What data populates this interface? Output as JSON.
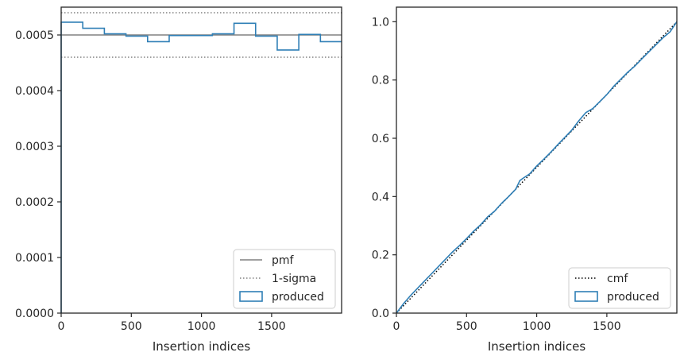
{
  "chart_data": [
    {
      "type": "step",
      "xlabel": "Insertion indices",
      "ylabel": "",
      "xlim": [
        0,
        1999
      ],
      "ylim": [
        0,
        0.00055
      ],
      "x_ticks": [
        0,
        500,
        1000,
        1500
      ],
      "x_tick_labels": [
        "0",
        "500",
        "1000",
        "1500"
      ],
      "y_ticks": [
        0,
        0.0001,
        0.0002,
        0.0003,
        0.0004,
        0.0005
      ],
      "y_tick_labels": [
        "0.0000",
        "0.0001",
        "0.0002",
        "0.0003",
        "0.0004",
        "0.0005"
      ],
      "reference_lines": [
        {
          "name": "pmf",
          "y": 0.0005,
          "color": "#808080",
          "style": "solid"
        },
        {
          "name": "1-sigma",
          "y": 0.00054,
          "color": "#808080",
          "style": "dotted"
        },
        {
          "name": "1-sigma",
          "y": 0.00046,
          "color": "#808080",
          "style": "dotted"
        }
      ],
      "series": [
        {
          "name": "produced",
          "color": "#2f7fb6",
          "bin_edges": [
            0,
            154,
            308,
            462,
            616,
            770,
            924,
            1078,
            1232,
            1386,
            1540,
            1694,
            1848,
            1999
          ],
          "values": [
            0.000523,
            0.000512,
            0.000502,
            0.000498,
            0.000488,
            0.000499,
            0.000499,
            0.000502,
            0.000521,
            0.000498,
            0.000473,
            0.000501,
            0.000488
          ]
        }
      ],
      "legend": {
        "position": "lower-right",
        "entries": [
          {
            "label": "pmf",
            "kind": "solid-line",
            "color": "#808080"
          },
          {
            "label": "1-sigma",
            "kind": "dotted-line",
            "color": "#808080"
          },
          {
            "label": "produced",
            "kind": "patch",
            "color": "#2f7fb6"
          }
        ]
      }
    },
    {
      "type": "step",
      "xlabel": "Insertion indices",
      "ylabel": "",
      "xlim": [
        0,
        1999
      ],
      "ylim": [
        0,
        1.05
      ],
      "x_ticks": [
        0,
        500,
        1000,
        1500
      ],
      "x_tick_labels": [
        "0",
        "500",
        "1000",
        "1500"
      ],
      "y_ticks": [
        0,
        0.2,
        0.4,
        0.6,
        0.8,
        1.0
      ],
      "y_tick_labels": [
        "0.0",
        "0.2",
        "0.4",
        "0.6",
        "0.8",
        "1.0"
      ],
      "reference_lines": [
        {
          "name": "cmf",
          "points": [
            [
              0,
              0
            ],
            [
              1999,
              1.0
            ]
          ],
          "color": "#000000",
          "style": "dotted"
        }
      ],
      "series": [
        {
          "name": "produced",
          "color": "#2f7fb6",
          "x": [
            0,
            50,
            100,
            150,
            200,
            250,
            300,
            350,
            400,
            450,
            500,
            550,
            600,
            650,
            700,
            750,
            800,
            850,
            880,
            900,
            950,
            1000,
            1050,
            1100,
            1150,
            1200,
            1250,
            1300,
            1350,
            1400,
            1450,
            1500,
            1550,
            1600,
            1650,
            1700,
            1750,
            1800,
            1850,
            1900,
            1950,
            1999
          ],
          "values": [
            0,
            0.032,
            0.06,
            0.085,
            0.11,
            0.135,
            0.16,
            0.185,
            0.21,
            0.232,
            0.256,
            0.281,
            0.303,
            0.33,
            0.35,
            0.377,
            0.4,
            0.425,
            0.455,
            0.462,
            0.478,
            0.505,
            0.528,
            0.552,
            0.578,
            0.603,
            0.628,
            0.66,
            0.688,
            0.702,
            0.726,
            0.75,
            0.779,
            0.803,
            0.827,
            0.848,
            0.873,
            0.897,
            0.921,
            0.945,
            0.965,
            1.0
          ]
        }
      ],
      "legend": {
        "position": "lower-right",
        "entries": [
          {
            "label": "cmf",
            "kind": "dotted-line",
            "color": "#000000"
          },
          {
            "label": "produced",
            "kind": "patch",
            "color": "#2f7fb6"
          }
        ]
      }
    }
  ]
}
